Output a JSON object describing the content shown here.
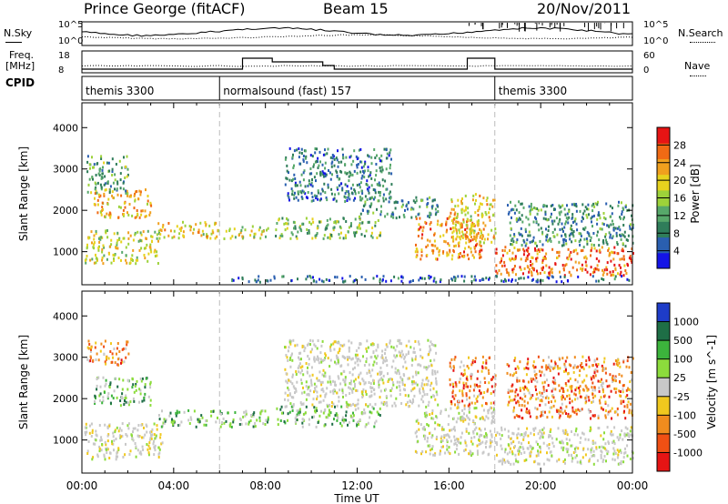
{
  "header": {
    "station": "Prince George (fitACF)",
    "beam": "Beam 15",
    "date": "20/Nov/2011"
  },
  "side_labels": {
    "n_sky": "N.Sky",
    "n_search": "N.Search",
    "freq": "Freq.",
    "mhz": "[MHz]",
    "nave": "Nave",
    "cpid": "CPID",
    "noise_ticks_left": [
      "10^5",
      "10^0"
    ],
    "noise_ticks_right": [
      "10^5",
      "10^0"
    ],
    "freq_ticks": [
      "18",
      "8"
    ],
    "nave_ticks": [
      "60",
      "0"
    ]
  },
  "cpid_segments": [
    {
      "label": "themis 3300",
      "start_hour": 0
    },
    {
      "label": "normalsound (fast) 157",
      "start_hour": 6
    },
    {
      "label": "themis 3300",
      "start_hour": 18
    }
  ],
  "chart_data": [
    {
      "type": "heatmap",
      "quantity": "Power",
      "ylabel": "Slant Range [km]",
      "xlabel": "Time UT",
      "x_ticks": [
        "00:00",
        "04:00",
        "08:00",
        "12:00",
        "16:00",
        "20:00",
        "00:00"
      ],
      "y_ticks": [
        1000,
        2000,
        3000,
        4000
      ],
      "ylim": [
        200,
        4600
      ],
      "xlim_hours": [
        0,
        24
      ],
      "colorbar_label": "Power [dB]",
      "colorbar_ticks": [
        4,
        8,
        12,
        16,
        20,
        24,
        28
      ],
      "colorbar_range": [
        0,
        32
      ],
      "colorbar_colors": [
        "#1414e6",
        "#2a5fb0",
        "#2f7d5a",
        "#57a86a",
        "#9dd23a",
        "#e6d21e",
        "#f0a01e",
        "#f06a14",
        "#e61414"
      ],
      "regions": [
        {
          "t0": 0.1,
          "t1": 3.4,
          "r0": 700,
          "r1": 1500,
          "level": 18
        },
        {
          "t0": 0.5,
          "t1": 3.0,
          "r0": 1800,
          "r1": 2500,
          "level": 22
        },
        {
          "t0": 0.2,
          "t1": 2.0,
          "r0": 2400,
          "r1": 3300,
          "level": 12
        },
        {
          "t0": 3.3,
          "t1": 6.0,
          "r0": 1300,
          "r1": 1700,
          "level": 20
        },
        {
          "t0": 6.0,
          "t1": 8.1,
          "r0": 1300,
          "r1": 1600,
          "level": 18
        },
        {
          "t0": 8.4,
          "t1": 13.0,
          "r0": 1300,
          "r1": 1800,
          "level": 14
        },
        {
          "t0": 8.8,
          "t1": 13.5,
          "r0": 2200,
          "r1": 3500,
          "level": 8
        },
        {
          "t0": 12.0,
          "t1": 15.5,
          "r0": 1800,
          "r1": 2300,
          "level": 10
        },
        {
          "t0": 14.5,
          "t1": 17.5,
          "r0": 800,
          "r1": 1800,
          "level": 24
        },
        {
          "t0": 16.0,
          "t1": 18.0,
          "r0": 1200,
          "r1": 2400,
          "level": 20
        },
        {
          "t0": 18.0,
          "t1": 24.0,
          "r0": 400,
          "r1": 1100,
          "level": 26
        },
        {
          "t0": 18.5,
          "t1": 24.0,
          "r0": 1100,
          "r1": 2200,
          "level": 10
        },
        {
          "t0": 6.5,
          "t1": 24.0,
          "r0": 250,
          "r1": 400,
          "level": 6
        }
      ]
    },
    {
      "type": "heatmap",
      "quantity": "Velocity",
      "ylabel": "Slant Range [km]",
      "xlabel": "Time UT",
      "x_ticks": [
        "00:00",
        "04:00",
        "08:00",
        "12:00",
        "16:00",
        "20:00",
        "00:00"
      ],
      "y_ticks": [
        1000,
        2000,
        3000,
        4000
      ],
      "ylim": [
        200,
        4600
      ],
      "xlim_hours": [
        0,
        24
      ],
      "colorbar_label": "Velocity [m s^-1]",
      "colorbar_ticks": [
        "1000",
        "500",
        "100",
        "25",
        "-25",
        "-100",
        "-500",
        "-1000"
      ],
      "colorbar_colors": [
        "#1e3cc8",
        "#1e6e46",
        "#3cb43c",
        "#8cdc3c",
        "#c8c8c8",
        "#f0c81e",
        "#f08c1e",
        "#f05014",
        "#e61414"
      ],
      "regions": [
        {
          "t0": 0.1,
          "t1": 3.5,
          "r0": 500,
          "r1": 1400,
          "level": "gray"
        },
        {
          "t0": 0.5,
          "t1": 3.0,
          "r0": 1800,
          "r1": 2500,
          "level": "green"
        },
        {
          "t0": 0.2,
          "t1": 2.0,
          "r0": 2800,
          "r1": 3400,
          "level": "orange"
        },
        {
          "t0": 3.3,
          "t1": 8.1,
          "r0": 1300,
          "r1": 1700,
          "level": "green"
        },
        {
          "t0": 8.4,
          "t1": 13.0,
          "r0": 1300,
          "r1": 1800,
          "level": "green"
        },
        {
          "t0": 8.8,
          "t1": 15.5,
          "r0": 1800,
          "r1": 3400,
          "level": "gray"
        },
        {
          "t0": 14.5,
          "t1": 18.0,
          "r0": 600,
          "r1": 1800,
          "level": "gray"
        },
        {
          "t0": 16.0,
          "t1": 18.0,
          "r0": 1800,
          "r1": 3000,
          "level": "orange"
        },
        {
          "t0": 18.0,
          "t1": 24.0,
          "r0": 400,
          "r1": 1300,
          "level": "gray"
        },
        {
          "t0": 18.5,
          "t1": 24.0,
          "r0": 1500,
          "r1": 3000,
          "level": "orange"
        }
      ]
    }
  ]
}
